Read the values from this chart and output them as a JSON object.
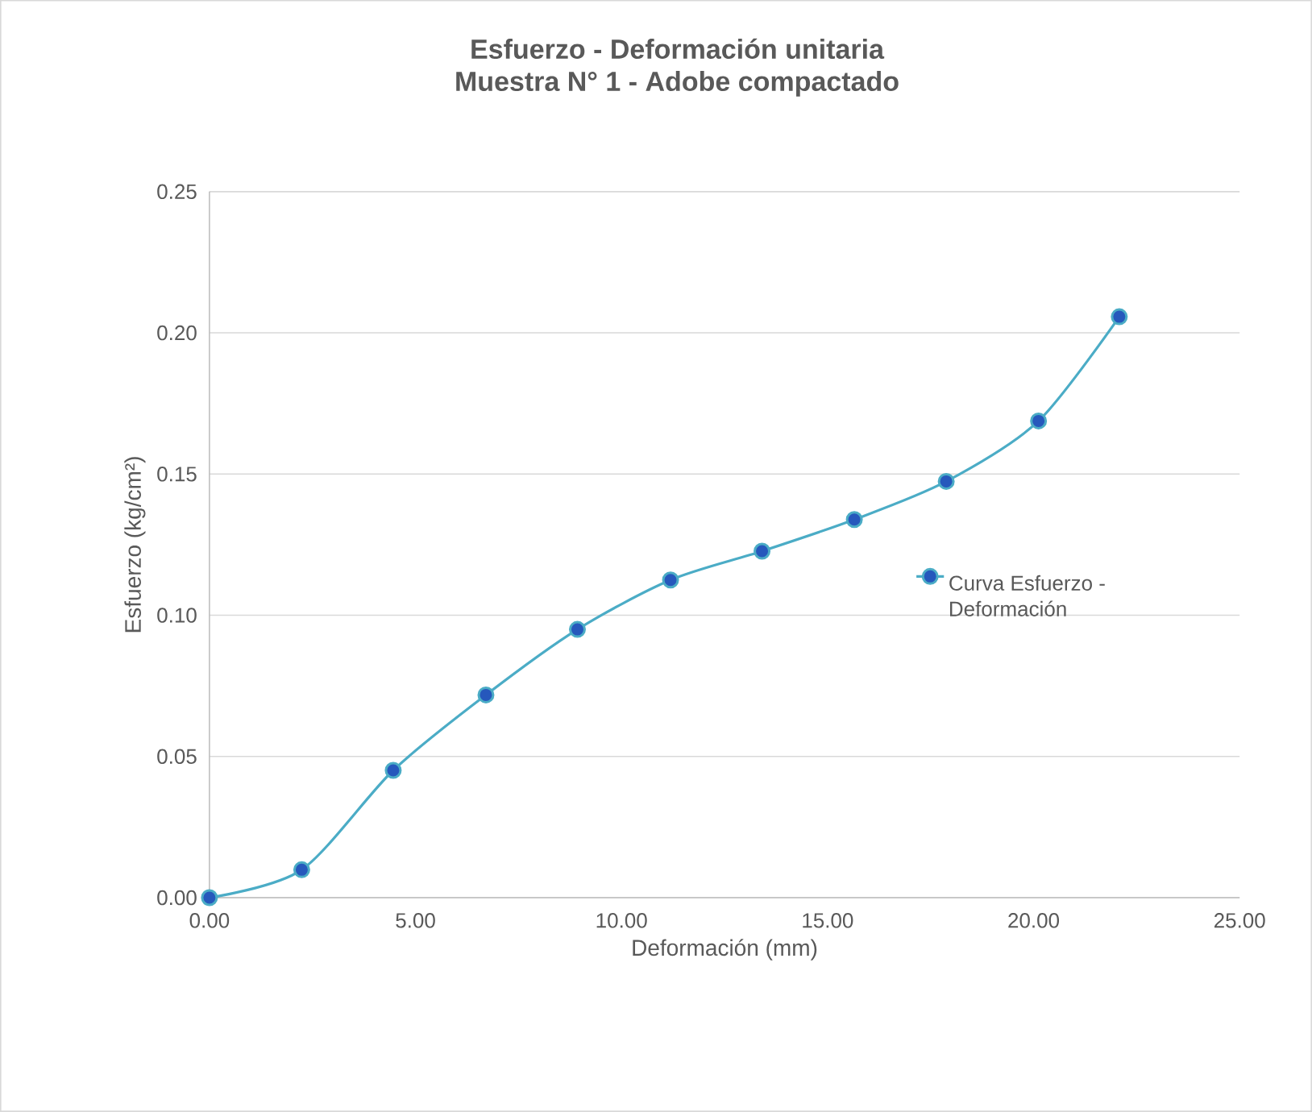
{
  "chart_data": {
    "type": "line",
    "title": "Esfuerzo - Deformación unitaria",
    "subtitle": "Muestra N° 1 - Adobe compactado",
    "xlabel": "Deformación (mm)",
    "ylabel": "Esfuerzo (kg/cm²)",
    "x": [
      0,
      2.24,
      4.46,
      6.71,
      8.93,
      11.19,
      13.41,
      15.65,
      17.88,
      20.12,
      22.08
    ],
    "series": [
      {
        "name": "Curva Esfuerzo - Deformación",
        "color": "#4bacc6",
        "values": [
          0,
          0.0099,
          0.0451,
          0.0718,
          0.095,
          0.1125,
          0.1227,
          0.1339,
          0.1474,
          0.1688,
          0.2057
        ]
      }
    ],
    "xlim": [
      0,
      25
    ],
    "ylim": [
      0,
      0.25
    ],
    "xticks": [
      {
        "value": 0,
        "label": "0.00"
      },
      {
        "value": 5,
        "label": "5.00"
      },
      {
        "value": 10,
        "label": "10.00"
      },
      {
        "value": 15,
        "label": "15.00"
      },
      {
        "value": 20,
        "label": "20.00"
      },
      {
        "value": 25,
        "label": "25.00"
      }
    ],
    "yticks": [
      {
        "value": 0,
        "label": "0.00"
      },
      {
        "value": 0.05,
        "label": "0.05"
      },
      {
        "value": 0.1,
        "label": "0.10"
      },
      {
        "value": 0.15,
        "label": "0.15"
      },
      {
        "value": 0.2,
        "label": "0.20"
      },
      {
        "value": 0.25,
        "label": "0.25"
      }
    ],
    "grid": "y",
    "legend": "right",
    "marker": "circle",
    "line_style": "solid"
  }
}
